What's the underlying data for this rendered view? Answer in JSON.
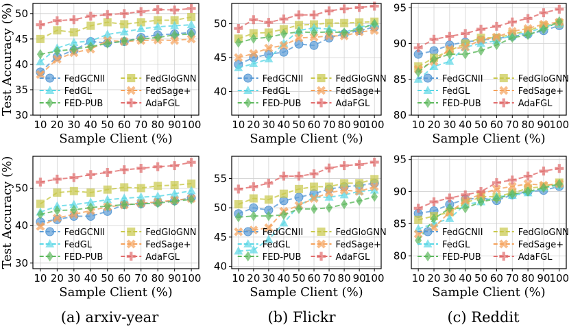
{
  "figure": {
    "captions": [
      "(a) arxiv-year",
      "(b) Flickr",
      "(c) Reddit"
    ]
  },
  "chart_data": [
    {
      "type": "line",
      "dataset": "arxiv-year",
      "row": 1,
      "title": "",
      "xlabel": "Sample Client (%)",
      "ylabel": "Test Accuracy (%)",
      "x": [
        10,
        20,
        30,
        40,
        50,
        60,
        70,
        80,
        90,
        100
      ],
      "ylim": [
        30,
        52
      ],
      "yticks": [
        30,
        35,
        40,
        45,
        50
      ],
      "grid": true,
      "legend": "bottom-right",
      "series": [
        {
          "name": "FedGCNII",
          "values": [
            38.5,
            41.5,
            42.8,
            44.5,
            44.2,
            44.5,
            45.3,
            45.8,
            46.0,
            46.3
          ]
        },
        {
          "name": "FedGloGNN",
          "values": [
            45.0,
            46.7,
            46.3,
            47.6,
            48.3,
            47.9,
            48.3,
            48.7,
            48.7,
            49.3
          ]
        },
        {
          "name": "FedGL",
          "values": [
            40.5,
            43.2,
            44.3,
            44.6,
            45.9,
            46.4,
            47.0,
            47.4,
            47.6,
            47.8
          ]
        },
        {
          "name": "FedSage+",
          "values": [
            38.0,
            41.0,
            42.3,
            43.0,
            44.7,
            44.5,
            44.7,
            44.8,
            44.7,
            45.0
          ]
        },
        {
          "name": "FED-PUB",
          "values": [
            42.0,
            42.6,
            43.0,
            43.5,
            44.1,
            44.6,
            45.0,
            45.3,
            45.8,
            46.0
          ]
        },
        {
          "name": "AdaFGL",
          "values": [
            47.8,
            48.6,
            48.8,
            49.5,
            49.8,
            50.0,
            50.4,
            50.8,
            50.7,
            51.0
          ]
        }
      ]
    },
    {
      "type": "line",
      "dataset": "Flickr",
      "row": 1,
      "title": "",
      "xlabel": "Sample Client (%)",
      "ylabel": "",
      "x": [
        10,
        20,
        30,
        40,
        50,
        60,
        70,
        80,
        90,
        100
      ],
      "ylim": [
        36.5,
        53
      ],
      "yticks": [
        40,
        45,
        50
      ],
      "grid": true,
      "legend": "bottom-right",
      "series": [
        {
          "name": "FedGCNII",
          "values": [
            44.0,
            45.0,
            45.5,
            45.8,
            47.0,
            46.8,
            47.9,
            48.5,
            49.0,
            49.5
          ]
        },
        {
          "name": "FedGloGNN",
          "values": [
            47.8,
            48.6,
            48.7,
            49.2,
            49.8,
            49.9,
            50.1,
            50.1,
            50.2,
            50.3
          ]
        },
        {
          "name": "FedGL",
          "values": [
            43.5,
            44.1,
            44.8,
            47.1,
            49.0,
            49.4,
            49.2,
            48.7,
            49.5,
            49.9
          ]
        },
        {
          "name": "FedSage+",
          "values": [
            45.0,
            45.6,
            46.4,
            46.8,
            47.9,
            48.0,
            48.2,
            48.2,
            48.8,
            49.0
          ]
        },
        {
          "name": "FED-PUB",
          "values": [
            47.2,
            47.8,
            48.0,
            48.5,
            48.8,
            48.7,
            48.8,
            48.7,
            49.2,
            50.0
          ]
        },
        {
          "name": "AdaFGL",
          "values": [
            49.3,
            50.6,
            50.2,
            50.7,
            51.3,
            51.3,
            51.9,
            52.2,
            52.4,
            52.6
          ]
        }
      ]
    },
    {
      "type": "line",
      "dataset": "Reddit",
      "row": 1,
      "title": "",
      "xlabel": "Sample Client (%)",
      "ylabel": "",
      "x": [
        10,
        20,
        30,
        40,
        50,
        60,
        70,
        80,
        90,
        100
      ],
      "ylim": [
        80,
        95.6
      ],
      "yticks": [
        80,
        85,
        90,
        95
      ],
      "grid": true,
      "legend": "bottom-right",
      "series": [
        {
          "name": "FedGCNII",
          "values": [
            88.5,
            89.0,
            89.8,
            90.2,
            90.5,
            90.7,
            91.0,
            91.3,
            91.8,
            92.5
          ]
        },
        {
          "name": "FedGloGNN",
          "values": [
            86.8,
            88.0,
            89.0,
            90.0,
            90.8,
            90.8,
            91.3,
            91.8,
            92.5,
            92.8
          ]
        },
        {
          "name": "FedGL",
          "values": [
            85.0,
            86.8,
            87.5,
            89.5,
            90.0,
            90.4,
            91.2,
            91.5,
            92.3,
            92.8
          ]
        },
        {
          "name": "FedSage+",
          "values": [
            86.4,
            87.5,
            89.2,
            89.5,
            90.5,
            90.9,
            91.7,
            92.1,
            92.7,
            93.0
          ]
        },
        {
          "name": "FED-PUB",
          "values": [
            86.0,
            87.8,
            88.5,
            88.5,
            89.0,
            89.8,
            90.8,
            91.2,
            92.0,
            93.1
          ]
        },
        {
          "name": "AdaFGL",
          "values": [
            89.4,
            90.6,
            91.0,
            91.4,
            92.0,
            92.4,
            93.0,
            93.5,
            94.3,
            94.8
          ]
        }
      ]
    },
    {
      "type": "line",
      "dataset": "arxiv-year",
      "row": 2,
      "title": "",
      "xlabel": "Sample Client (%)",
      "ylabel": "Test Accuracy (%)",
      "x": [
        10,
        20,
        30,
        40,
        50,
        60,
        70,
        80,
        90,
        100
      ],
      "ylim": [
        28.5,
        58.5
      ],
      "yticks": [
        30,
        40,
        50
      ],
      "grid": true,
      "legend": "bottom-right",
      "series": [
        {
          "name": "FedGCNII",
          "values": [
            41.0,
            41.6,
            42.5,
            42.5,
            43.8,
            45.6,
            45.8,
            46.2,
            46.6,
            47.4
          ]
        },
        {
          "name": "FedGloGNN",
          "values": [
            45.8,
            48.8,
            49.2,
            48.8,
            49.6,
            50.2,
            50.0,
            50.6,
            50.8,
            51.2
          ]
        },
        {
          "name": "FedGL",
          "values": [
            43.6,
            45.2,
            45.6,
            46.2,
            46.9,
            47.3,
            47.6,
            47.8,
            48.5,
            49.3
          ]
        },
        {
          "name": "FedSage+",
          "values": [
            39.8,
            42.0,
            43.0,
            44.0,
            45.0,
            45.5,
            46.0,
            46.3,
            46.8,
            47.2
          ]
        },
        {
          "name": "FED-PUB",
          "values": [
            43.0,
            44.0,
            44.2,
            44.8,
            45.2,
            45.6,
            45.8,
            46.0,
            46.5,
            47.0
          ]
        },
        {
          "name": "AdaFGL",
          "values": [
            51.6,
            52.4,
            52.8,
            53.6,
            54.2,
            54.9,
            55.3,
            55.7,
            56.0,
            56.9
          ]
        }
      ]
    },
    {
      "type": "line",
      "dataset": "Flickr",
      "row": 2,
      "title": "",
      "xlabel": "Sample Client (%)",
      "ylabel": "",
      "x": [
        10,
        20,
        30,
        40,
        50,
        60,
        70,
        80,
        90,
        100
      ],
      "ylim": [
        39.6,
        58.8
      ],
      "yticks": [
        40,
        45,
        50,
        55
      ],
      "grid": true,
      "legend": "bottom-right",
      "series": [
        {
          "name": "FedGCNII",
          "values": [
            49.0,
            50.0,
            49.6,
            51.2,
            51.8,
            52.4,
            53.2,
            53.6,
            53.8,
            54.2
          ]
        },
        {
          "name": "FedGloGNN",
          "values": [
            50.6,
            51.6,
            51.4,
            52.4,
            53.2,
            53.6,
            53.6,
            54.2,
            54.2,
            54.9
          ]
        },
        {
          "name": "FedGL",
          "values": [
            42.6,
            42.8,
            44.6,
            47.4,
            50.4,
            51.8,
            51.8,
            52.2,
            52.8,
            53.0
          ]
        },
        {
          "name": "FedSage+",
          "values": [
            45.9,
            46.2,
            46.6,
            49.4,
            50.4,
            51.6,
            52.6,
            53.0,
            52.8,
            53.6
          ]
        },
        {
          "name": "FED-PUB",
          "values": [
            48.4,
            48.6,
            48.6,
            48.8,
            49.8,
            49.8,
            50.0,
            50.6,
            51.2,
            51.9
          ]
        },
        {
          "name": "AdaFGL",
          "values": [
            53.2,
            53.6,
            54.2,
            55.4,
            55.4,
            55.8,
            56.8,
            57.2,
            57.4,
            57.8
          ]
        }
      ]
    },
    {
      "type": "line",
      "dataset": "Reddit",
      "row": 2,
      "title": "",
      "xlabel": "Sample Client (%)",
      "ylabel": "",
      "x": [
        10,
        20,
        30,
        40,
        50,
        60,
        70,
        80,
        90,
        100
      ],
      "ylim": [
        78,
        95.5
      ],
      "yticks": [
        80,
        85,
        90,
        95
      ],
      "grid": true,
      "legend": "bottom-right",
      "series": [
        {
          "name": "FedGCNII",
          "values": [
            86.6,
            87.0,
            88.0,
            88.8,
            89.0,
            88.6,
            89.5,
            90.0,
            90.2,
            90.8
          ]
        },
        {
          "name": "FedGloGNN",
          "values": [
            85.6,
            86.2,
            86.8,
            88.2,
            89.2,
            89.2,
            89.8,
            90.5,
            90.8,
            91.4
          ]
        },
        {
          "name": "FedGL",
          "values": [
            84.2,
            85.0,
            85.8,
            88.0,
            88.4,
            89.2,
            89.4,
            89.8,
            90.6,
            91.0
          ]
        },
        {
          "name": "FedSage+",
          "values": [
            83.4,
            84.4,
            86.8,
            88.6,
            89.6,
            90.4,
            90.8,
            91.2,
            91.0,
            91.2
          ]
        },
        {
          "name": "FED-PUB",
          "values": [
            82.4,
            85.8,
            87.4,
            87.4,
            88.4,
            88.9,
            89.6,
            90.0,
            90.6,
            91.2
          ]
        },
        {
          "name": "AdaFGL",
          "values": [
            87.4,
            88.4,
            89.0,
            89.5,
            90.0,
            91.4,
            91.8,
            92.4,
            93.2,
            93.6
          ]
        }
      ]
    }
  ],
  "series_styles": [
    {
      "name": "FedGCNII",
      "color": "#5b9bd5",
      "marker": "circle"
    },
    {
      "name": "FedGloGNN",
      "color": "#c8c84a",
      "marker": "square"
    },
    {
      "name": "FedGL",
      "color": "#5ad7e6",
      "marker": "triangle"
    },
    {
      "name": "FedSage+",
      "color": "#f5a15a",
      "marker": "x"
    },
    {
      "name": "FED-PUB",
      "color": "#5cb85c",
      "marker": "diamond"
    },
    {
      "name": "AdaFGL",
      "color": "#e06b6b",
      "marker": "plus"
    }
  ]
}
